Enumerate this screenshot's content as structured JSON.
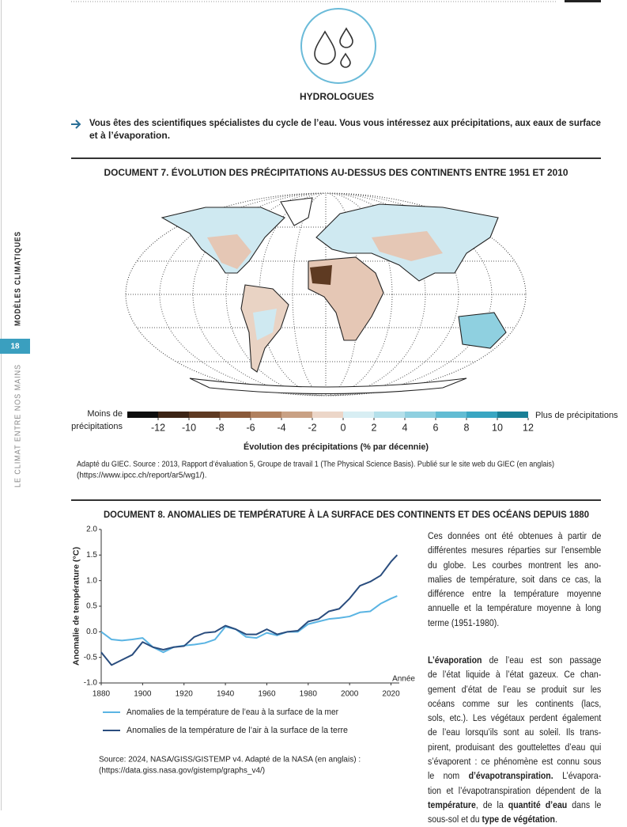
{
  "sidebar": {
    "section": "MODÈLES CLIMATIQUES",
    "page_number": 18,
    "book_title": "LE CLIMAT ENTRE NOS MAINS"
  },
  "header": {
    "title": "HYDROLOGUES",
    "intro_lines": [
      "Vous êtes des scientifiques spécialistes du cycle de l’eau. Vous vous intéressez aux précipitations, aux eaux de surface",
      "et à l’évaporation."
    ]
  },
  "document7": {
    "title": "DOCUMENT 7. ÉVOLUTION DES PRÉCIPITATIONS AU-DESSUS DES CONTINENTS ENTRE 1951 ET 2010",
    "colorbar": {
      "left_label_lines": [
        "Moins de",
        "précipitations"
      ],
      "right_label": "Plus de précipitations",
      "ticks": [
        -12,
        -10,
        -8,
        -6,
        -4,
        -2,
        0,
        2,
        4,
        6,
        8,
        10,
        12
      ],
      "colors": [
        "#0d0d0d",
        "#3b2314",
        "#5e3a22",
        "#8a5a3a",
        "#b0805e",
        "#c9a184",
        "#ecd6c8",
        "#d8eef3",
        "#b4e0ea",
        "#8fd0e0",
        "#62bcd3",
        "#3aa6c2",
        "#1a7f96"
      ],
      "axis_label": "Évolution des précipitations (% par décennie)"
    },
    "source_lines": [
      "Adapté du GIEC. Source : 2013, Rapport d’évaluation 5, Groupe de travail 1 (The Physical Science Basis). Publié sur le site web du GIEC (en anglais)",
      "(https://www.ipcc.ch/report/ar5/wg1/)."
    ]
  },
  "document8": {
    "title": "DOCUMENT 8. ANOMALIES DE TEMPÉRATURE À LA SURFACE DES CONTINENTS ET DES OCÉANS DEPUIS 1880",
    "paragraph1_lines": [
      "Ces données ont été obtenues à partir de",
      "différentes mesures réparties sur l’ensemble",
      "du globe. Les courbes montrent les ano-",
      "malies de température, soit dans ce cas, la",
      "différence entre la température moyenne",
      "annuelle et la température moyenne à long",
      "terme (1951-1980)."
    ],
    "paragraph2_lines": [
      [
        {
          "text": "L’évaporation",
          "bold": true
        },
        " de l’eau est son passage"
      ],
      [
        "de l’état liquide à l’état gazeux. Ce chan-"
      ],
      [
        "gement d’état de l’eau se produit sur les"
      ],
      [
        "océans comme sur les continents (lacs,"
      ],
      [
        "sols, etc.). Les végétaux perdent également"
      ],
      [
        "de l’eau lorsqu’ils sont au soleil. Ils trans-"
      ],
      [
        "pirent, produisant des gouttelettes d’eau qui"
      ],
      [
        "s’évaporent : ce phénomène est connu sous"
      ],
      [
        "le nom ",
        {
          "text": "d’évapotranspiration.",
          "bold": true
        },
        " L’évapora-"
      ],
      [
        "tion et l’évapotranspiration dépendent de la"
      ],
      [
        {
          "text": "température",
          "bold": true
        },
        ", de la ",
        {
          "text": "quantité d’eau",
          "bold": true
        },
        " dans le"
      ],
      [
        "sous-sol et du ",
        {
          "text": "type de végétation",
          "bold": true
        },
        "."
      ]
    ],
    "source_lines": [
      "Source: 2024, NASA/GISS/GISTEMP v4. Adapté de la NASA (en anglais) :",
      "(https://data.giss.nasa.gov/gistemp/graphs_v4/)"
    ]
  },
  "chart_data": {
    "type": "line",
    "y_label": "Anomalie de température (°C)",
    "x_label": "Année",
    "x": [
      1880,
      1885,
      1890,
      1895,
      1900,
      1905,
      1910,
      1915,
      1920,
      1925,
      1930,
      1935,
      1940,
      1945,
      1950,
      1955,
      1960,
      1965,
      1970,
      1975,
      1980,
      1985,
      1990,
      1995,
      2000,
      2005,
      2010,
      2015,
      2020,
      2023
    ],
    "series": [
      {
        "name": "Anomalies de la température de l’eau à la surface de la mer",
        "color": "#5ab4e3",
        "values": [
          0.0,
          -0.15,
          -0.17,
          -0.15,
          -0.12,
          -0.3,
          -0.4,
          -0.3,
          -0.27,
          -0.25,
          -0.22,
          -0.15,
          0.1,
          0.05,
          -0.1,
          -0.12,
          -0.02,
          -0.07,
          0.0,
          0.0,
          0.15,
          0.2,
          0.25,
          0.27,
          0.3,
          0.38,
          0.4,
          0.55,
          0.65,
          0.7
        ]
      },
      {
        "name": "Anomalies de la température de l’air à la surface de la terre",
        "color": "#2a4d7e",
        "values": [
          -0.4,
          -0.65,
          -0.55,
          -0.45,
          -0.2,
          -0.3,
          -0.35,
          -0.3,
          -0.28,
          -0.1,
          -0.02,
          0.0,
          0.12,
          0.05,
          -0.05,
          -0.05,
          0.05,
          -0.05,
          0.0,
          0.02,
          0.2,
          0.25,
          0.4,
          0.45,
          0.65,
          0.9,
          0.98,
          1.1,
          1.37,
          1.5
        ]
      }
    ],
    "xlim": [
      1880,
      2024
    ],
    "xticks": [
      1880,
      1900,
      1920,
      1940,
      1960,
      1980,
      2000,
      2020
    ],
    "ylim": [
      -1,
      2
    ],
    "yticks": [
      {
        "value": -1,
        "label": "-1.0"
      },
      {
        "value": -0.5,
        "label": "-0.5"
      },
      {
        "value": 0,
        "label": "0.0"
      },
      {
        "value": 0.5,
        "label": "0.5"
      },
      {
        "value": 1,
        "label": "1.0"
      },
      {
        "value": 1.5,
        "label": "1.5"
      },
      {
        "value": 2,
        "label": "2.0"
      }
    ],
    "grid": false
  }
}
